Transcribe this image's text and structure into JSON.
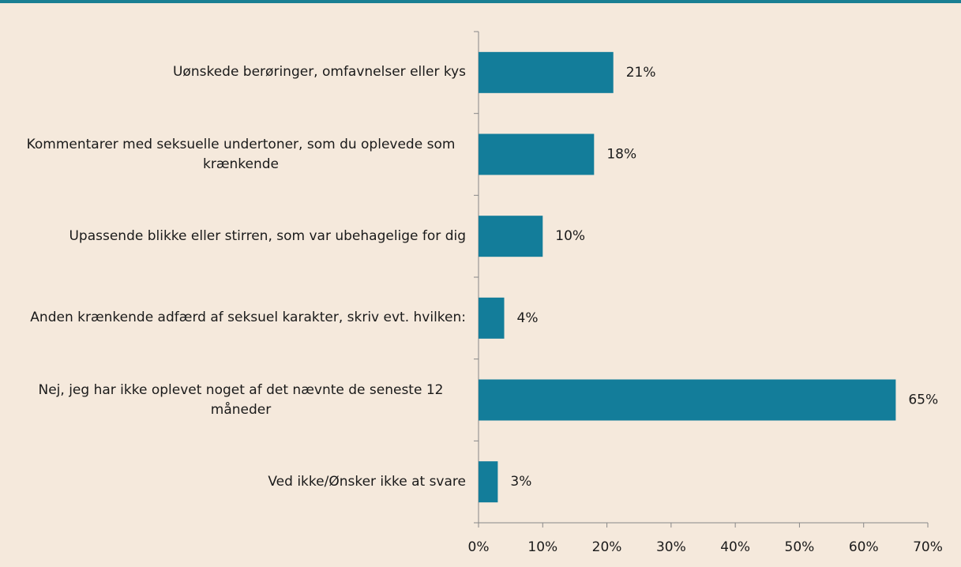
{
  "chart_data": {
    "type": "hbar",
    "categories": [
      "Uønskede berøringer, omfavnelser eller kys",
      "Kommentarer med seksuelle undertoner, som du oplevede som krænkende",
      "Upassende blikke eller stirren, som var ubehagelige for dig",
      "Anden krænkende adfærd af seksuel karakter, skriv evt. hvilken:",
      "Nej, jeg har ikke oplevet noget af det nævnte de seneste 12 måneder",
      "Ved ikke/Ønsker ikke at svare"
    ],
    "values": [
      21,
      18,
      10,
      4,
      65,
      3
    ],
    "value_labels": [
      "21%",
      "18%",
      "10%",
      "4%",
      "65%",
      "3%"
    ],
    "color": "#137d9a",
    "xlim": [
      0,
      70
    ],
    "xticks": [
      {
        "value": 0,
        "label": "0%"
      },
      {
        "value": 10,
        "label": "10%"
      },
      {
        "value": 20,
        "label": "20%"
      },
      {
        "value": 30,
        "label": "30%"
      },
      {
        "value": 40,
        "label": "40%"
      },
      {
        "value": 50,
        "label": "50%"
      },
      {
        "value": 60,
        "label": "60%"
      },
      {
        "value": 70,
        "label": "70%"
      }
    ]
  }
}
